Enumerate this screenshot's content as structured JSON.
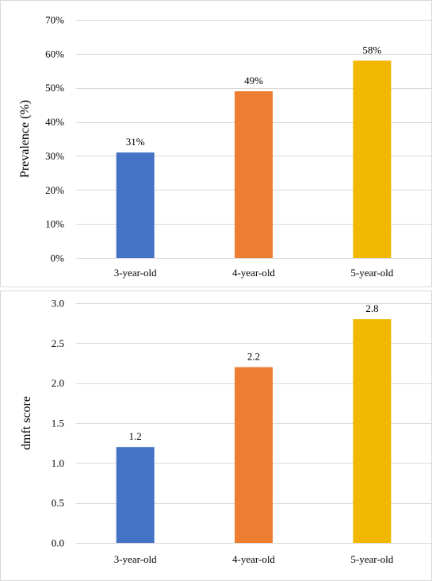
{
  "chart_data": [
    {
      "type": "bar",
      "title": "",
      "xlabel": "",
      "ylabel": "Prevalence (%)",
      "ylim": [
        0,
        70
      ],
      "y_ticks": [
        "0%",
        "10%",
        "20%",
        "30%",
        "40%",
        "50%",
        "60%",
        "70%"
      ],
      "y_tick_values": [
        0,
        10,
        20,
        30,
        40,
        50,
        60,
        70
      ],
      "grid": true,
      "categories": [
        "3-year-old",
        "4-year-old",
        "5-year-old"
      ],
      "values": [
        31,
        49,
        58
      ],
      "data_labels": [
        "31%",
        "49%",
        "58%"
      ],
      "colors": [
        "#4472C4",
        "#ED7D31",
        "#F2B701"
      ]
    },
    {
      "type": "bar",
      "title": "",
      "xlabel": "",
      "ylabel": "dmft score",
      "ylim": [
        0,
        3.0
      ],
      "y_ticks": [
        "0.0",
        "0.5",
        "1.0",
        "1.5",
        "2.0",
        "2.5",
        "3.0"
      ],
      "y_tick_values": [
        0,
        0.5,
        1.0,
        1.5,
        2.0,
        2.5,
        3.0
      ],
      "grid": true,
      "categories": [
        "3-year-old",
        "4-year-old",
        "5-year-old"
      ],
      "values": [
        1.2,
        2.2,
        2.8
      ],
      "data_labels": [
        "1.2",
        "2.2",
        "2.8"
      ],
      "colors": [
        "#4472C4",
        "#ED7D31",
        "#F2B701"
      ]
    }
  ]
}
